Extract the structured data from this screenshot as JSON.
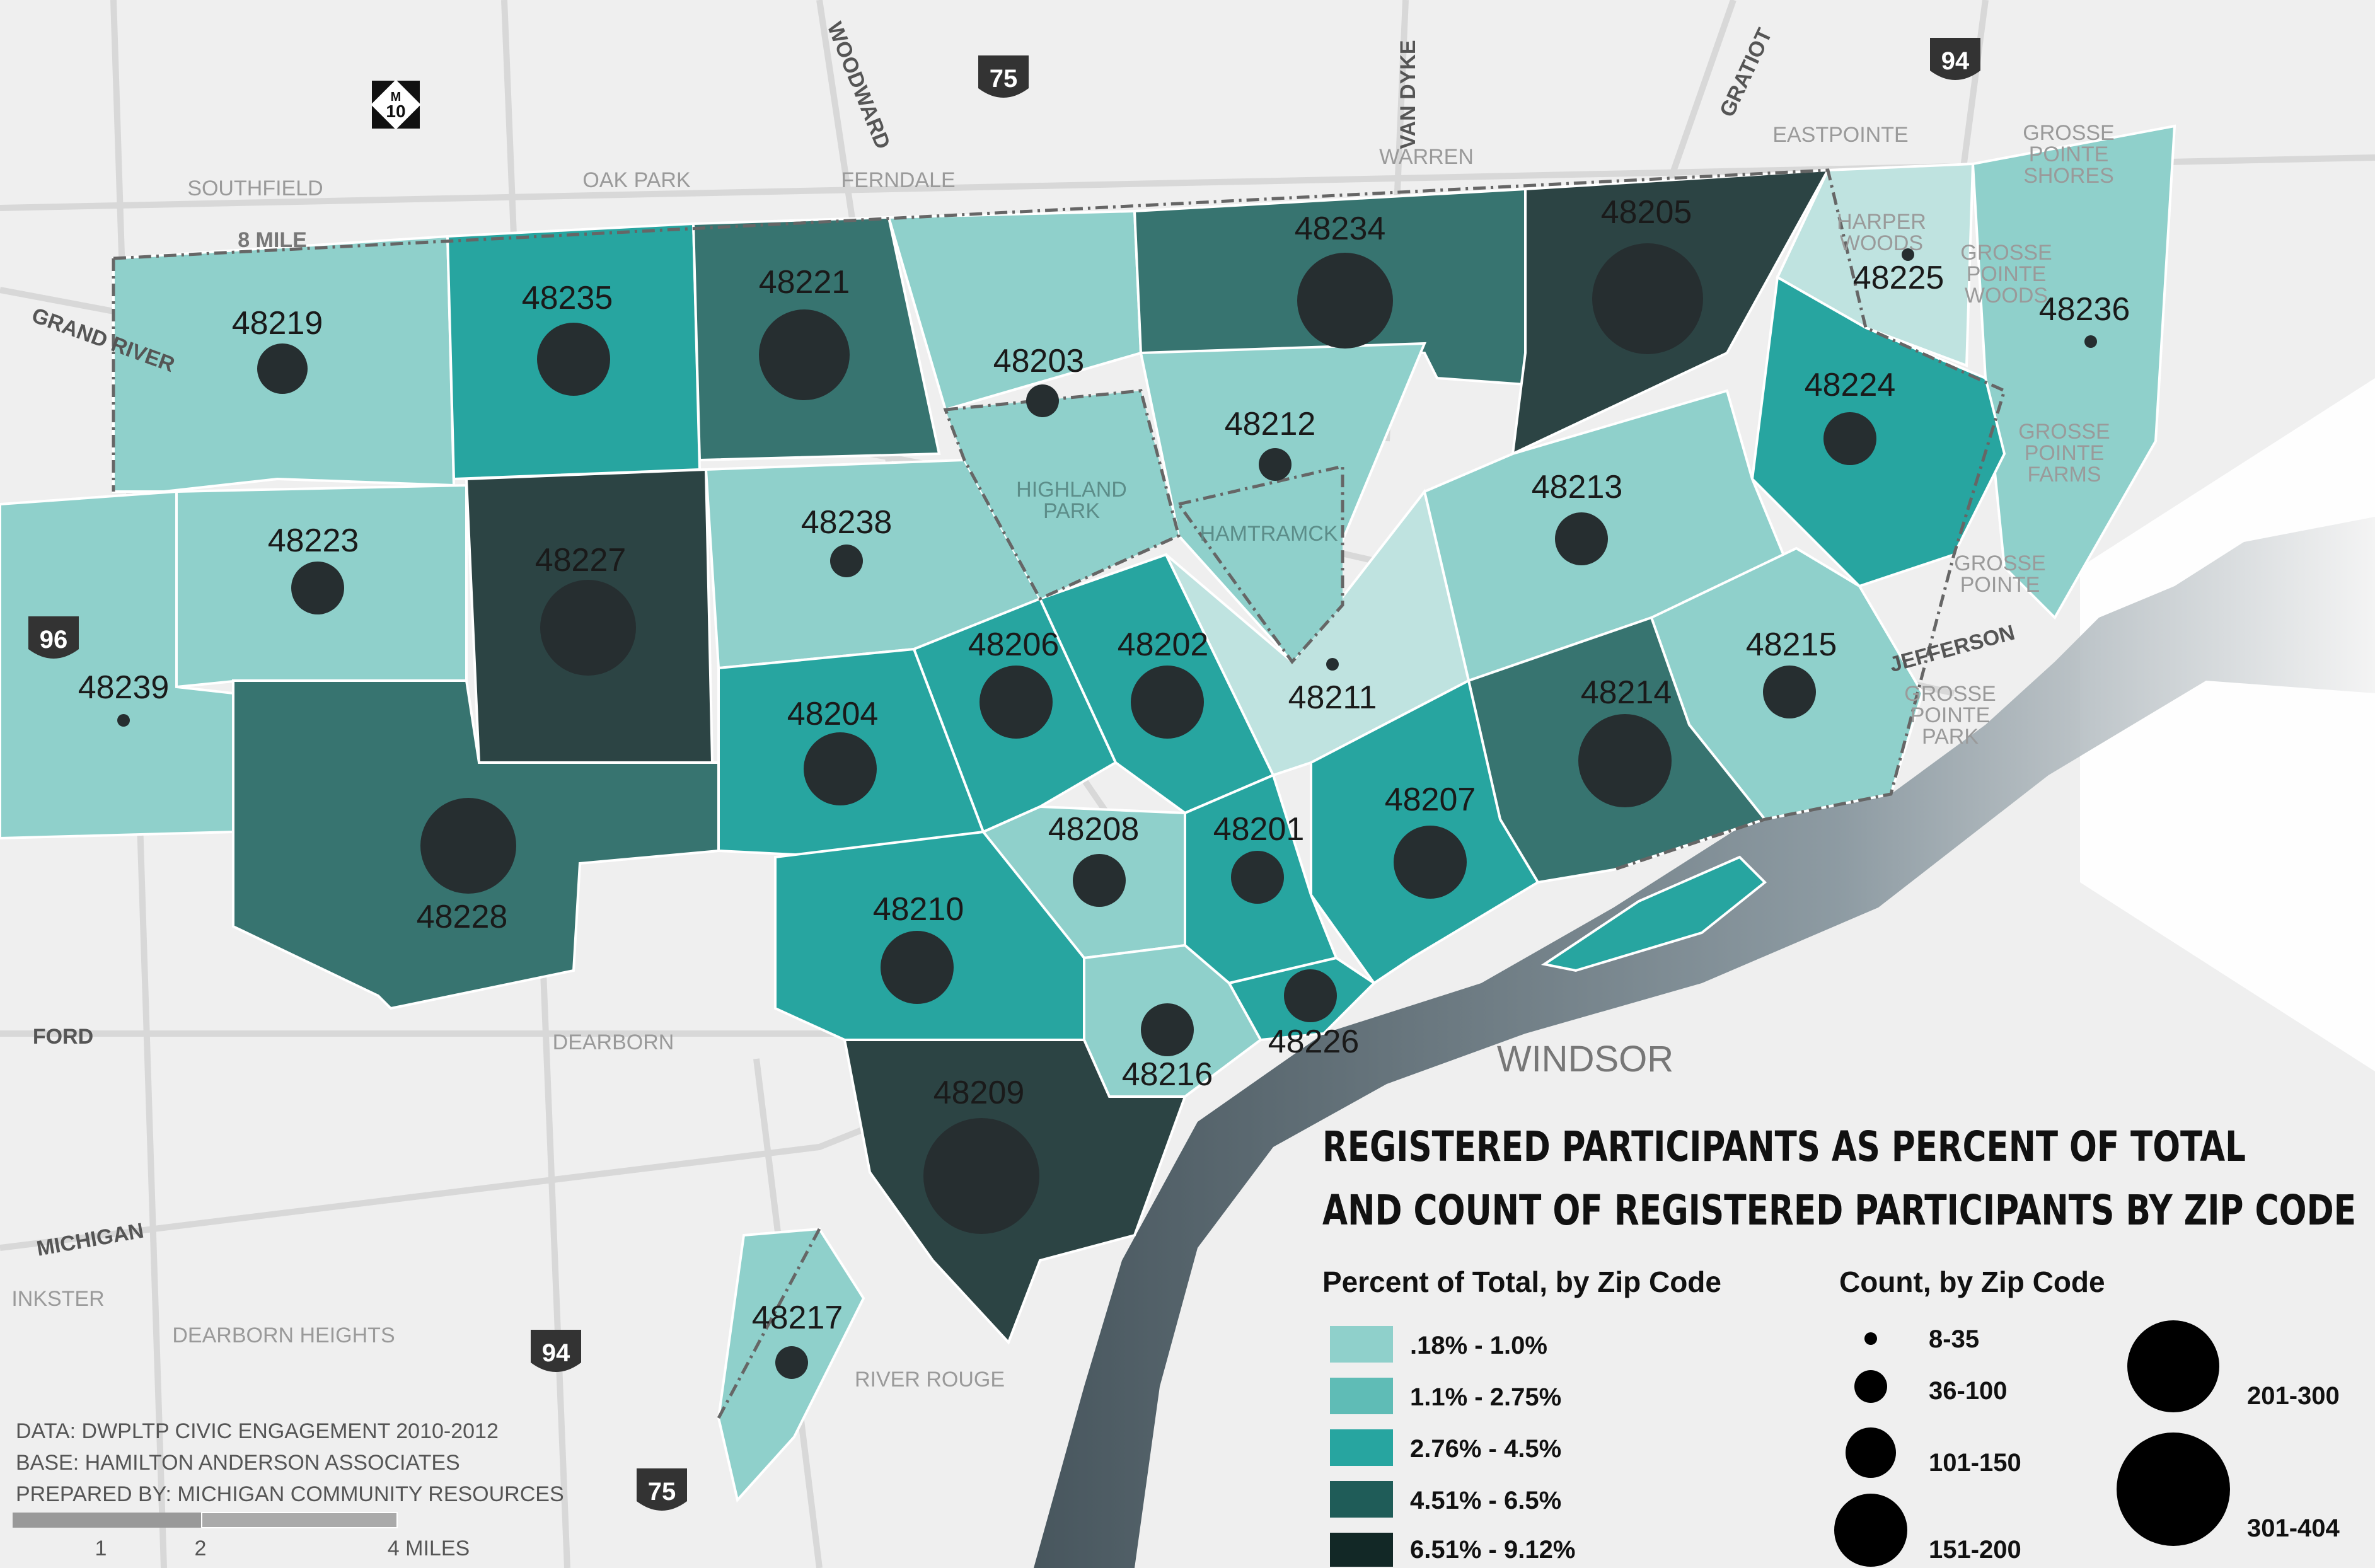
{
  "legend": {
    "title_line1": "REGISTERED PARTICIPANTS AS PERCENT OF TOTAL",
    "title_line2": "AND COUNT OF REGISTERED PARTICIPANTS BY ZIP CODE",
    "percent_heading": "Percent of Total, by Zip Code",
    "count_heading": "Count, by Zip Code",
    "percent_classes": [
      {
        "label": ".18% - 1.0%",
        "color": "#8fd0cb"
      },
      {
        "label": "1.1% - 2.75%",
        "color": "#5fbcb6"
      },
      {
        "label": "2.76% - 4.5%",
        "color": "#27a5a0"
      },
      {
        "label": "4.51% - 6.5%",
        "color": "#377470"
      },
      {
        "label": "6.51% - 9.12%",
        "color": "#2c4444"
      }
    ],
    "count_classes": [
      "8-35",
      "36-100",
      "101-150",
      "151-200",
      "201-300",
      "301-404"
    ]
  },
  "zip_codes": {
    "z48219": "48219",
    "z48235": "48235",
    "z48221": "48221",
    "z48203": "48203",
    "z48234": "48234",
    "z48205": "48205",
    "z48225": "48225",
    "z48236": "48236",
    "z48212": "48212",
    "z48224": "48224",
    "z48213": "48213",
    "z48223": "48223",
    "z48227": "48227",
    "z48238": "48238",
    "z48239": "48239",
    "z48206": "48206",
    "z48202": "48202",
    "z48211": "48211",
    "z48215": "48215",
    "z48204": "48204",
    "z48214": "48214",
    "z48207": "48207",
    "z48208": "48208",
    "z48201": "48201",
    "z48228": "48228",
    "z48210": "48210",
    "z48226": "48226",
    "z48216": "48216",
    "z48209": "48209",
    "z48217": "48217"
  },
  "places": {
    "southfield": "SOUTHFIELD",
    "oak_park": "OAK PARK",
    "ferndale": "FERNDALE",
    "warren": "WARREN",
    "eastpointe": "EASTPOINTE",
    "gp_shores_1": "GROSSE",
    "gp_shores_2": "POINTE",
    "gp_shores_3": "SHORES",
    "harper_1": "HARPER",
    "harper_2": "WOODS",
    "gp_woods_1": "GROSSE",
    "gp_woods_2": "POINTE",
    "gp_woods_3": "WOODS",
    "gp_farms_1": "GROSSE",
    "gp_farms_2": "POINTE",
    "gp_farms_3": "FARMS",
    "gp_1": "GROSSE",
    "gp_2": "POINTE",
    "gp_park_1": "GROSSE",
    "gp_park_2": "POINTE",
    "gp_park_3": "PARK",
    "highland_1": "HIGHLAND",
    "highland_2": "PARK",
    "hamtramck": "HAMTRAMCK",
    "dearborn": "DEARBORN",
    "windsor": "WINDSOR",
    "inkster": "INKSTER",
    "dearborn_heights": "DEARBORN HEIGHTS",
    "river_rouge": "RIVER ROUGE"
  },
  "roads": {
    "eight_mile": "8 MILE",
    "grand_river": "GRAND RIVER",
    "woodward": "WOODWARD",
    "van_dyke": "VAN DYKE",
    "gratiot": "GRATIOT",
    "jefferson": "JEFFERSON",
    "ford": "FORD",
    "michigan": "MICHIGAN"
  },
  "shields": {
    "m10": "10",
    "m10_letter": "M",
    "i75": "75",
    "i94": "94",
    "i96": "96",
    "i94_south": "94",
    "i75_south": "75"
  },
  "credits": {
    "line1": "DATA: DWPLTP CIVIC ENGAGEMENT 2010-2012",
    "line2": "BASE: HAMILTON ANDERSON ASSOCIATES",
    "line3": "PREPARED BY: MICHIGAN COMMUNITY RESOURCES"
  },
  "scale": {
    "t1": "1",
    "t2": "2",
    "t4": "4 MILES"
  }
}
